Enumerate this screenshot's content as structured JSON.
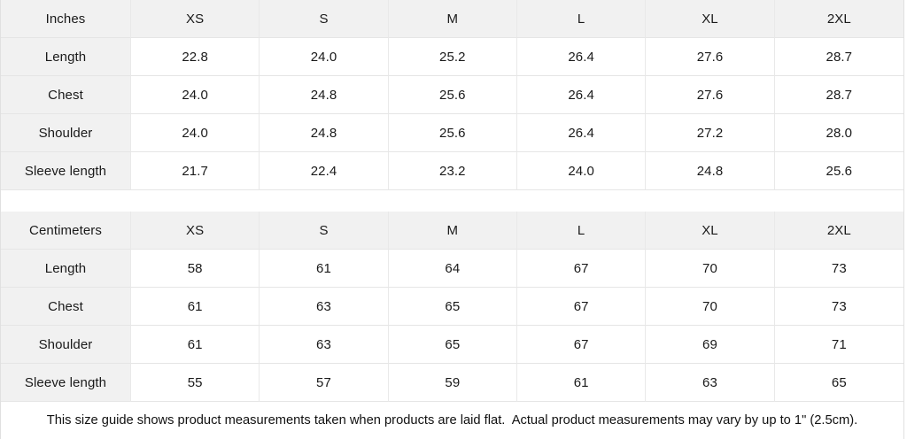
{
  "tables": [
    {
      "unit_label": "Inches",
      "columns": [
        "XS",
        "S",
        "M",
        "L",
        "XL",
        "2XL"
      ],
      "rows": [
        {
          "label": "Length",
          "values": [
            "22.8",
            "24.0",
            "25.2",
            "26.4",
            "27.6",
            "28.7"
          ]
        },
        {
          "label": "Chest",
          "values": [
            "24.0",
            "24.8",
            "25.6",
            "26.4",
            "27.6",
            "28.7"
          ]
        },
        {
          "label": "Shoulder",
          "values": [
            "24.0",
            "24.8",
            "25.6",
            "26.4",
            "27.2",
            "28.0"
          ]
        },
        {
          "label": "Sleeve length",
          "values": [
            "21.7",
            "22.4",
            "23.2",
            "24.0",
            "24.8",
            "25.6"
          ]
        }
      ]
    },
    {
      "unit_label": "Centimeters",
      "columns": [
        "XS",
        "S",
        "M",
        "L",
        "XL",
        "2XL"
      ],
      "rows": [
        {
          "label": "Length",
          "values": [
            "58",
            "61",
            "64",
            "67",
            "70",
            "73"
          ]
        },
        {
          "label": "Chest",
          "values": [
            "61",
            "63",
            "65",
            "67",
            "70",
            "73"
          ]
        },
        {
          "label": "Shoulder",
          "values": [
            "61",
            "63",
            "65",
            "67",
            "69",
            "71"
          ]
        },
        {
          "label": "Sleeve length",
          "values": [
            "55",
            "57",
            "59",
            "61",
            "63",
            "65"
          ]
        }
      ]
    }
  ],
  "footnote": "This size guide shows product measurements taken when products are laid flat.  Actual product measurements may vary by up to 1\" (2.5cm).",
  "colors": {
    "header_bg": "#f1f1f1",
    "cell_border": "#e5e5e5",
    "panel_border": "#e0e0e0",
    "text": "#1a1a1a",
    "background": "#ffffff"
  }
}
